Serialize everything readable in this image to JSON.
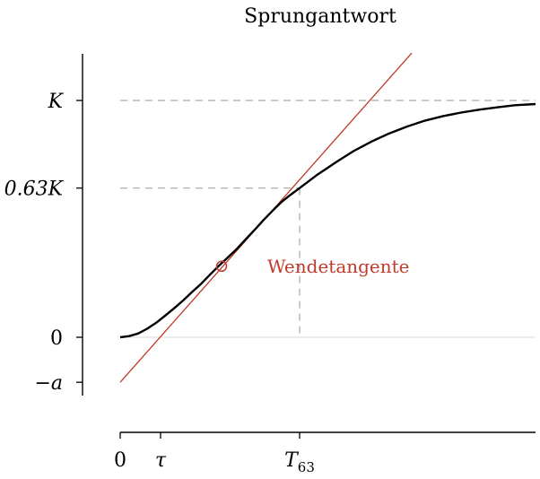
{
  "chart_data": {
    "type": "line",
    "title": "Sprungantwort",
    "xlabel": "",
    "ylabel": "",
    "y_ticks": [
      {
        "label": "K",
        "value": 1.0
      },
      {
        "label": "0.63K",
        "value": 0.63
      },
      {
        "label": "0",
        "value": 0.0
      },
      {
        "label": "−a",
        "value": -0.19
      }
    ],
    "x_ticks": [
      {
        "label": "0",
        "value": 0.0
      },
      {
        "label": "τ",
        "value": 0.45
      },
      {
        "label": "T",
        "sub": "63",
        "value": 2.0
      }
    ],
    "xlim": [
      0,
      4.63
    ],
    "ylim": [
      -0.19,
      1.2
    ],
    "series": [
      {
        "color": "#000000",
        "x": [
          0.0,
          0.1,
          0.2,
          0.3,
          0.4,
          0.5,
          0.6,
          0.7,
          0.8,
          0.9,
          1.0,
          1.1,
          1.2,
          1.3,
          1.4,
          1.5,
          1.6,
          1.7,
          1.8,
          1.9,
          2.0,
          2.2,
          2.4,
          2.6,
          2.8,
          3.0,
          3.2,
          3.4,
          3.6,
          3.8,
          4.0,
          4.2,
          4.4,
          4.63
        ],
        "y": [
          0.0,
          0.005,
          0.016,
          0.036,
          0.061,
          0.091,
          0.122,
          0.155,
          0.191,
          0.225,
          0.264,
          0.302,
          0.337,
          0.373,
          0.414,
          0.454,
          0.496,
          0.535,
          0.572,
          0.602,
          0.63,
          0.687,
          0.738,
          0.786,
          0.826,
          0.861,
          0.89,
          0.915,
          0.934,
          0.949,
          0.961,
          0.971,
          0.98,
          0.985
        ]
      }
    ],
    "tangent": {
      "color": "#c0392b",
      "label": "Wendetangente",
      "x0": 0.0,
      "y0": -0.19,
      "x1": 3.25,
      "y1": 1.2,
      "inflection": {
        "x": 1.13,
        "y": 0.3
      }
    },
    "reference_lines": {
      "K": 1.0,
      "y63": 0.63,
      "T63": 2.0
    },
    "grid": false
  }
}
